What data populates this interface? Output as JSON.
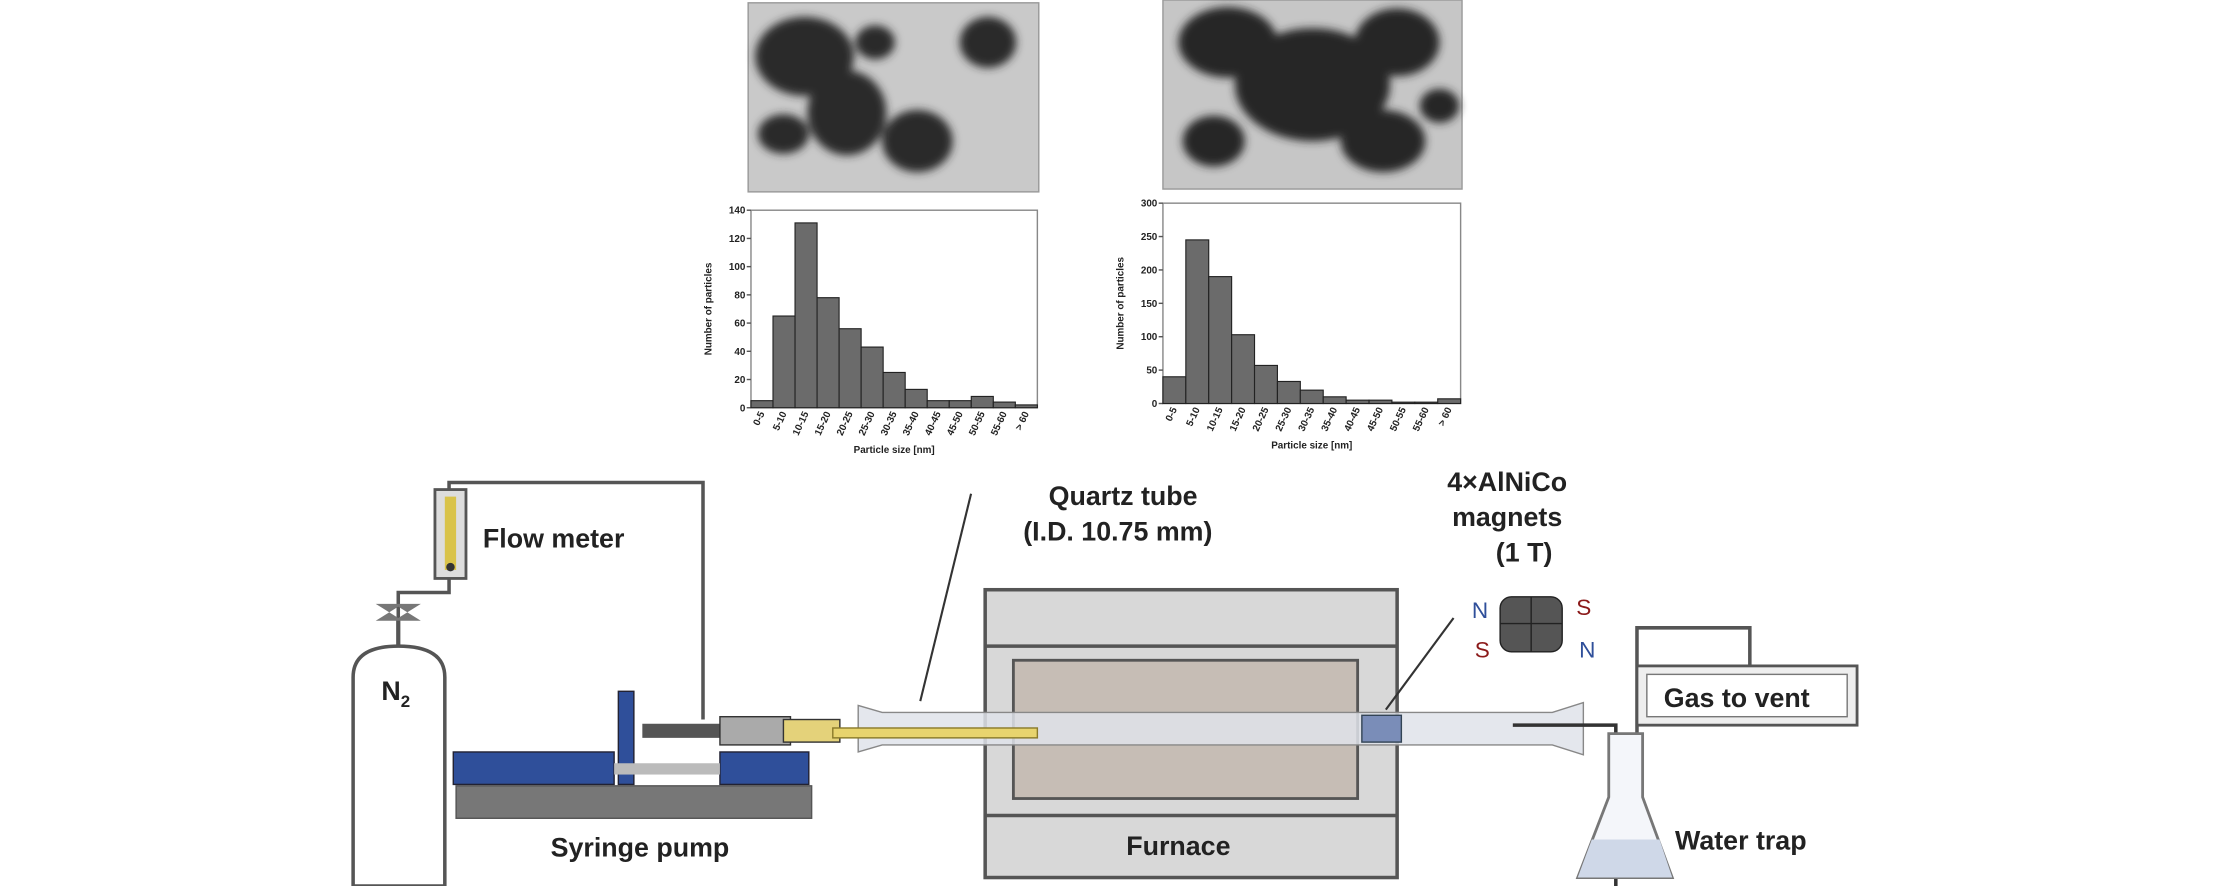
{
  "chart_data": [
    {
      "type": "bar",
      "x_label": "Particle size [nm]",
      "y_label": "Number of particles",
      "categories": [
        "0-5",
        "5-10",
        "10-15",
        "15-20",
        "20-25",
        "25-30",
        "30-35",
        "35-40",
        "40-45",
        "45-50",
        "50-55",
        "55-60",
        "> 60"
      ],
      "values": [
        5,
        65,
        131,
        78,
        56,
        43,
        25,
        13,
        5,
        5,
        8,
        4,
        2
      ],
      "color": "#6b6b6b",
      "ylim": [
        0,
        140
      ],
      "yticks": [
        0,
        20,
        40,
        60,
        80,
        100,
        120,
        140
      ]
    },
    {
      "type": "bar",
      "x_label": "Particle size [nm]",
      "y_label": "Number of particles",
      "categories": [
        "0-5",
        "5-10",
        "10-15",
        "15-20",
        "20-25",
        "25-30",
        "30-35",
        "35-40",
        "40-45",
        "45-50",
        "50-55",
        "55-60",
        "> 60"
      ],
      "values": [
        40,
        245,
        190,
        103,
        57,
        33,
        20,
        10,
        5,
        5,
        2,
        2,
        7
      ],
      "color": "#6b6b6b",
      "ylim": [
        0,
        300
      ],
      "yticks": [
        0,
        50,
        100,
        150,
        200,
        250,
        300
      ]
    }
  ],
  "labels": {
    "flow_meter": "Flow meter",
    "cylinder_symbol": "N",
    "cylinder_subscript": "2",
    "syringe_pump": "Syringe pump",
    "quartz_tube": "Quartz tube",
    "quartz_tube_id": "(I.D. 10.75 mm)",
    "magnets_line1": "4×AlNiCo",
    "magnets_line2": "magnets",
    "magnets_line3": "(1 T)",
    "pole_n_left": "N",
    "pole_s_right": "S",
    "pole_s_left": "S",
    "pole_n_right": "N",
    "furnace": "Furnace",
    "gas_to_vent": "Gas to vent",
    "water_trap": "Water trap"
  }
}
